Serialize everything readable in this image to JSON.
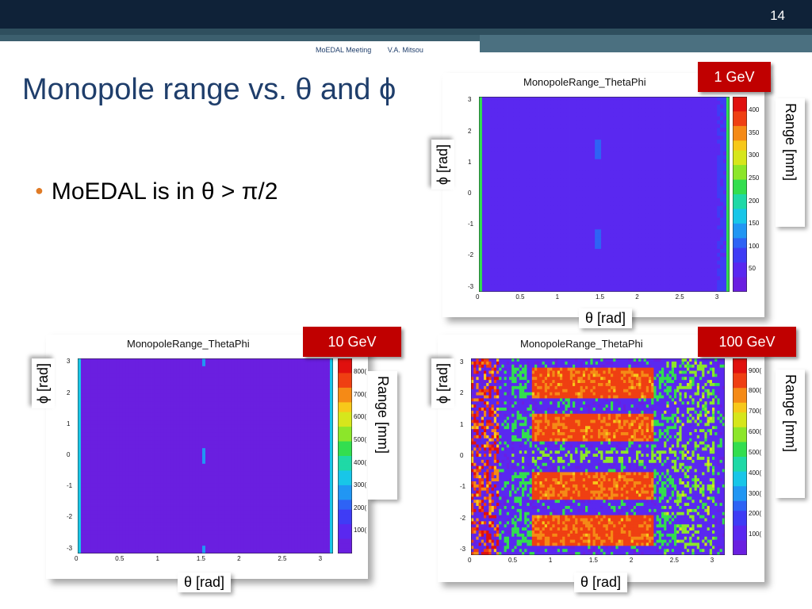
{
  "slide": {
    "number": "14",
    "footer_meeting": "MoEDAL Meeting",
    "footer_author": "V.A. Mitsou",
    "title": "Monopole range vs. θ and ϕ",
    "bullet": "MoEDAL is in θ > π/2",
    "bullet_color": "#e07b26",
    "title_color": "#1f3e6b"
  },
  "labels": {
    "theta": "θ [rad]",
    "phi": "ϕ [rad]",
    "range": "Range [mm]"
  },
  "chart_data": [
    {
      "type": "heatmap",
      "id": "1gev",
      "badge": "1 GeV",
      "title": "MonopoleRange_ThetaPhi",
      "xlabel": "θ [rad]",
      "ylabel": "ϕ [rad]",
      "zlabel": "Range [mm]",
      "xlim": [
        0,
        3.14
      ],
      "ylim": [
        -3.14,
        3.14
      ],
      "xticks": [
        "0",
        "0.5",
        "1",
        "1.5",
        "2",
        "2.5",
        "3"
      ],
      "yticks": [
        "3",
        "2",
        "1",
        "0",
        "-1",
        "-2",
        "-3"
      ],
      "zticks": [
        "400",
        "350",
        "300",
        "250",
        "200",
        "150",
        "100",
        "50"
      ],
      "zlim": [
        0,
        430
      ]
    },
    {
      "type": "heatmap",
      "id": "10gev",
      "badge": "10 GeV",
      "title": "MonopoleRange_ThetaPhi",
      "xlabel": "θ [rad]",
      "ylabel": "ϕ [rad]",
      "zlabel": "Range [mm]",
      "xlim": [
        0,
        3.14
      ],
      "ylim": [
        -3.14,
        3.14
      ],
      "xticks": [
        "0",
        "0.5",
        "1",
        "1.5",
        "2",
        "2.5",
        "3"
      ],
      "yticks": [
        "3",
        "2",
        "1",
        "0",
        "-1",
        "-2",
        "-3"
      ],
      "zticks": [
        "800(",
        "700(",
        "600(",
        "500(",
        "400(",
        "300(",
        "200(",
        "100("
      ],
      "zlim": [
        0,
        8500
      ]
    },
    {
      "type": "heatmap",
      "id": "100gev",
      "badge": "100 GeV",
      "title": "MonopoleRange_ThetaPhi",
      "xlabel": "θ [rad]",
      "ylabel": "ϕ [rad]",
      "zlabel": "Range [mm]",
      "xlim": [
        0,
        3.14
      ],
      "ylim": [
        -3.14,
        3.14
      ],
      "xticks": [
        "0",
        "0.5",
        "1",
        "1.5",
        "2",
        "2.5",
        "3"
      ],
      "yticks": [
        "3",
        "2",
        "1",
        "0",
        "-1",
        "-2",
        "-3"
      ],
      "zticks": [
        "900(",
        "800(",
        "700(",
        "600(",
        "500(",
        "400(",
        "300(",
        "200(",
        "100("
      ],
      "zlim": [
        0,
        9800
      ]
    }
  ]
}
